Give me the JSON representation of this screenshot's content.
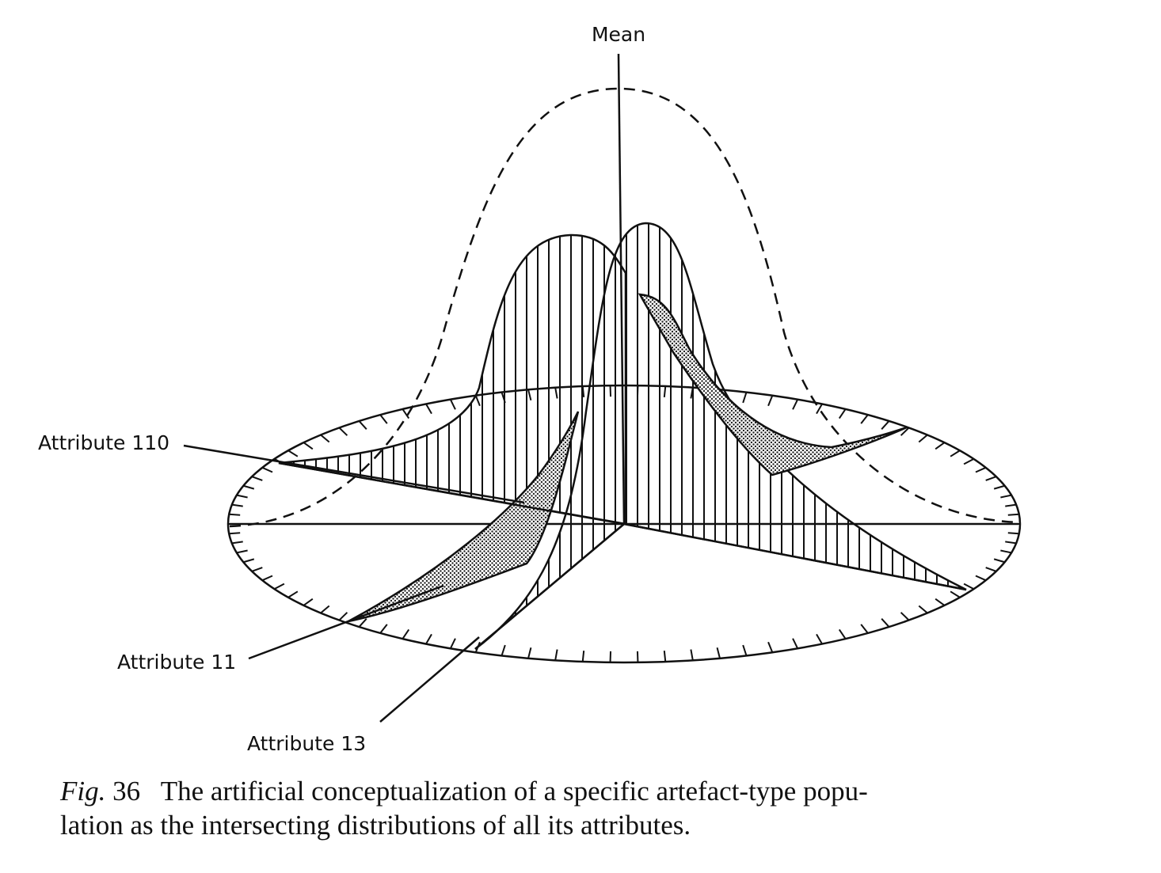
{
  "figure": {
    "axis_label": "Mean",
    "labels": {
      "attr110": "Attribute 110",
      "attr11": "Attribute 11",
      "attr13": "Attribute 13"
    },
    "caption": {
      "fig_word": "Fig.",
      "fig_number": "36",
      "text_line1": "The artificial conceptualization of a specific artefact-type popu-",
      "text_line2": "lation as the intersecting distributions of all its attributes."
    }
  }
}
